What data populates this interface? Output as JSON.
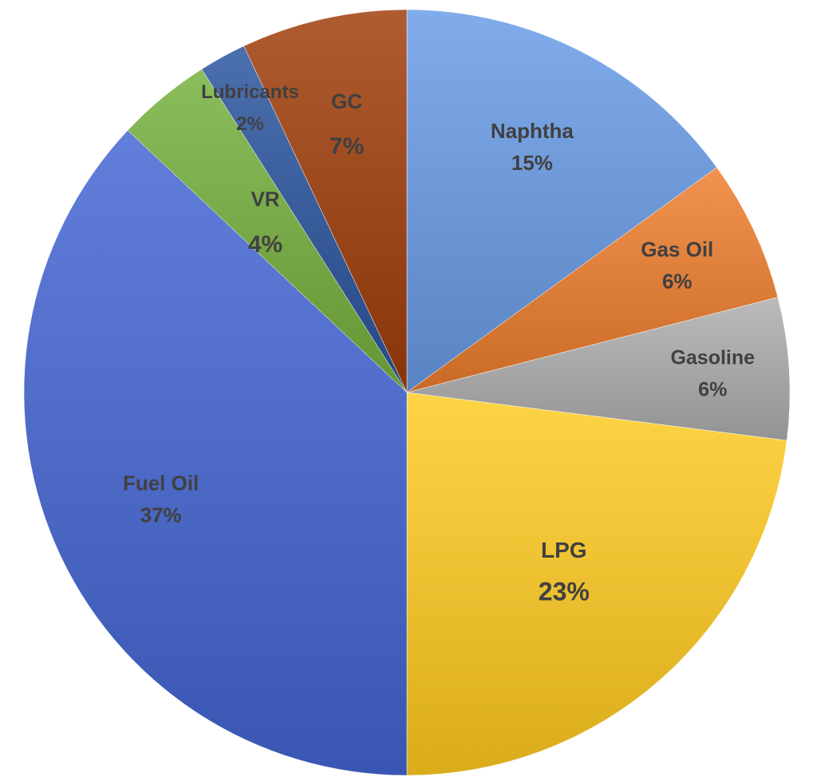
{
  "chart_data": {
    "type": "pie",
    "title": "",
    "start": "12 o'clock",
    "direction": "clockwise",
    "slices": [
      {
        "label": "Naphtha",
        "value": 15,
        "value_label": "15%",
        "color": "#6f9ad9"
      },
      {
        "label": "Gas Oil",
        "value": 6,
        "value_label": "6%",
        "color": "#e0803d"
      },
      {
        "label": "Gasoline",
        "value": 6,
        "value_label": "6%",
        "color": "#a9a9a9"
      },
      {
        "label": "LPG",
        "value": 23,
        "value_label": "23%",
        "color": "#f0c232"
      },
      {
        "label": "Fuel Oil",
        "value": 37,
        "value_label": "37%",
        "color": "#4f6cc8"
      },
      {
        "label": "VR",
        "value": 4,
        "value_label": "4%",
        "color": "#7aab4a"
      },
      {
        "label": "Lubricants",
        "value": 2,
        "value_label": "2%",
        "color": "#3a5d9c"
      },
      {
        "label": "GC",
        "value": 7,
        "value_label": "7%",
        "color": "#9c4a1e"
      }
    ]
  }
}
